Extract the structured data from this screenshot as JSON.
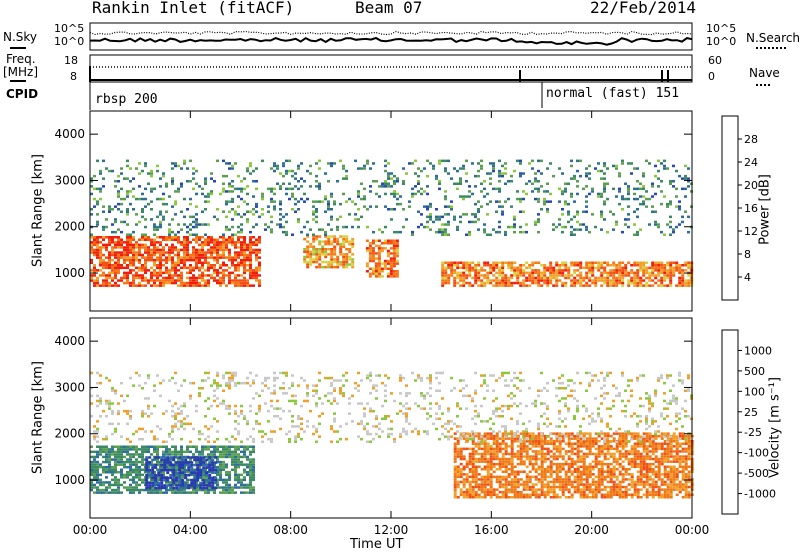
{
  "header": {
    "station": "Rankin Inlet (fitACF)",
    "beam": "Beam 07",
    "date": "22/Feb/2014"
  },
  "left_labels": {
    "nsky": "N.Sky",
    "freq_line1": "Freq.",
    "freq_line2": "[MHz]",
    "cpid": "CPID"
  },
  "right_labels": {
    "nsearch": "N.Search",
    "nave": "Nave"
  },
  "strip_ticks": {
    "noise_left": [
      "10^5",
      "10^0"
    ],
    "noise_right": [
      "10^5",
      "10^0"
    ],
    "freq_left": [
      "18",
      "8"
    ],
    "freq_right": [
      "60",
      "0"
    ]
  },
  "cpid_labels": {
    "first": "rbsp 200",
    "second": "normal (fast) 151"
  },
  "time_axis": {
    "label": "Time UT",
    "ticks": [
      "00:00",
      "04:00",
      "08:00",
      "12:00",
      "16:00",
      "20:00",
      "00:00"
    ]
  },
  "panels": {
    "power": {
      "ylabel": "Slant Range [km]",
      "yticks": [
        "4000",
        "3000",
        "2000",
        "1000"
      ],
      "cb_label": "Power [dB]",
      "cb_ticks": [
        "28",
        "24",
        "20",
        "16",
        "12",
        "8",
        "4"
      ]
    },
    "velocity": {
      "ylabel": "Slant Range [km]",
      "yticks": [
        "4000",
        "3000",
        "2000",
        "1000"
      ],
      "cb_label": "Velocity [m s⁻¹]",
      "cb_ticks": [
        "1000",
        "500",
        "100",
        "25",
        "-25",
        "-100",
        "-500",
        "-1000"
      ]
    }
  },
  "chart_data": [
    {
      "type": "heatmap",
      "title": "Power",
      "xlabel": "Time UT",
      "ylabel": "Slant Range [km]",
      "x_range_hours": [
        0,
        24
      ],
      "ylim": [
        180,
        4500
      ],
      "colorbar": {
        "label": "Power [dB]",
        "range": [
          0,
          32
        ],
        "ticks": [
          4,
          8,
          12,
          16,
          20,
          24,
          28
        ]
      },
      "colors": [
        "#0a1cff",
        "#2848b4",
        "#2e6e96",
        "#3c8a64",
        "#5a9e50",
        "#8cc83c",
        "#d7d23c",
        "#f0a028",
        "#f57814",
        "#f55014",
        "#f01e0a"
      ],
      "echo_regions": [
        {
          "t_start": 0.0,
          "t_end": 6.8,
          "range_km": [
            700,
            1800
          ],
          "power_db": 28
        },
        {
          "t_start": 8.5,
          "t_end": 10.5,
          "range_km": [
            1100,
            1800
          ],
          "power_db": 22
        },
        {
          "t_start": 11.0,
          "t_end": 12.2,
          "range_km": [
            900,
            1700
          ],
          "power_db": 24
        },
        {
          "t_start": 14.0,
          "t_end": 24.0,
          "range_km": [
            700,
            1200
          ],
          "power_db": 26
        },
        {
          "t_start": 0.0,
          "t_end": 24.0,
          "range_km": [
            1800,
            3400
          ],
          "power_db": 8
        }
      ]
    },
    {
      "type": "heatmap",
      "title": "Velocity",
      "xlabel": "Time UT",
      "ylabel": "Slant Range [km]",
      "x_range_hours": [
        0,
        24
      ],
      "ylim": [
        180,
        4500
      ],
      "colorbar": {
        "label": "Velocity [m s-1]",
        "ticks": [
          1000,
          500,
          100,
          25,
          -25,
          -100,
          -500,
          -1000
        ]
      },
      "colors": [
        "#2838b4",
        "#2e6ea0",
        "#3c8a64",
        "#5aa050",
        "#8cc83c",
        "#c8c8c8",
        "#f0a028",
        "#f07814",
        "#f05014",
        "#f01e0a"
      ],
      "echo_regions": [
        {
          "t_start": 0.0,
          "t_end": 6.5,
          "range_km": [
            700,
            1700
          ],
          "velocity": 200
        },
        {
          "t_start": 2.2,
          "t_end": 5.0,
          "range_km": [
            800,
            1500
          ],
          "velocity": 700
        },
        {
          "t_start": 14.5,
          "t_end": 24.0,
          "range_km": [
            600,
            2000
          ],
          "velocity": -300
        },
        {
          "t_start": 0.0,
          "t_end": 24.0,
          "range_km": [
            1800,
            3300
          ],
          "velocity": 0
        }
      ]
    }
  ]
}
